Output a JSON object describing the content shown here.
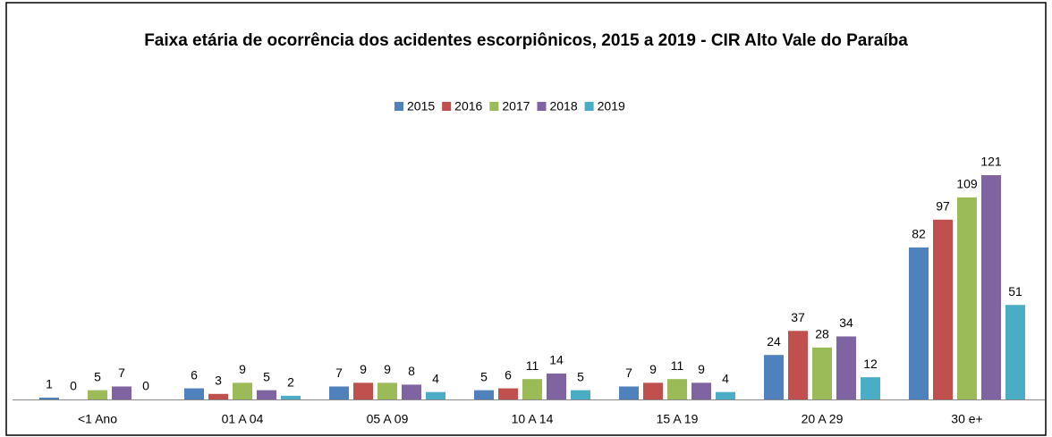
{
  "chart_data": {
    "type": "bar",
    "title": "Faixa etária de ocorrência dos acidentes escorpiônicos, 2015 a 2019 - CIR Alto Vale do Paraíba",
    "categories": [
      "<1 Ano",
      "01 A 04",
      "05 A 09",
      "10 A 14",
      "15 A 19",
      "20 A 29",
      "30 e+"
    ],
    "series": [
      {
        "name": "2015",
        "color": "#4f81bd",
        "values": [
          1,
          6,
          7,
          5,
          7,
          24,
          82
        ]
      },
      {
        "name": "2016",
        "color": "#c0504d",
        "values": [
          0,
          3,
          9,
          6,
          9,
          37,
          97
        ]
      },
      {
        "name": "2017",
        "color": "#9bbb59",
        "values": [
          5,
          9,
          9,
          11,
          11,
          28,
          109
        ]
      },
      {
        "name": "2018",
        "color": "#8064a2",
        "values": [
          7,
          5,
          8,
          14,
          9,
          34,
          121
        ]
      },
      {
        "name": "2019",
        "color": "#4bacc6",
        "values": [
          0,
          2,
          4,
          5,
          4,
          12,
          51
        ]
      }
    ],
    "legend": "top"
  }
}
